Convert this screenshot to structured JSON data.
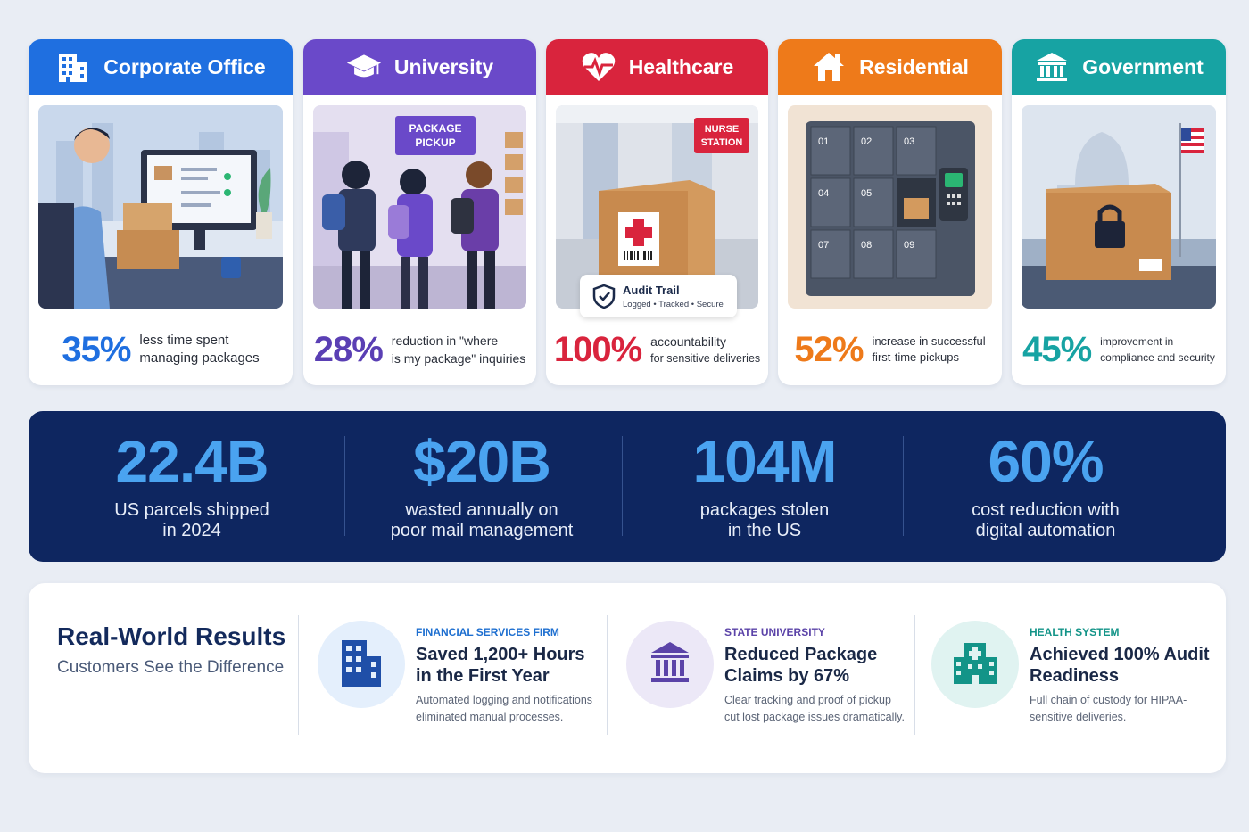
{
  "sectors": [
    {
      "title": "Corporate Office",
      "icon": "office-building-icon",
      "color": "#1f6fe0",
      "pct": "35%",
      "line1": "less time spent",
      "line2": "managing packages"
    },
    {
      "title": "University",
      "icon": "graduation-cap-icon",
      "color": "#6a49c9",
      "pct": "28%",
      "line1": "reduction in \"where",
      "line2": "is my package\" inquiries",
      "sign": "PACKAGE PICKUP"
    },
    {
      "title": "Healthcare",
      "icon": "heart-pulse-icon",
      "color": "#d9243d",
      "pct": "100%",
      "line1": "accountability",
      "line2": "for sensitive deliveries",
      "sign": "NURSE STATION",
      "audit_title": "Audit Trail",
      "audit_sub": "Logged • Tracked • Secure"
    },
    {
      "title": "Residential",
      "icon": "house-icon",
      "color": "#ee7a1a",
      "pct": "52%",
      "line1": "increase in successful",
      "line2": "first-time pickups",
      "lockers": [
        "01",
        "02",
        "03",
        "04",
        "05",
        "07",
        "08",
        "09"
      ]
    },
    {
      "title": "Government",
      "icon": "capitol-building-icon",
      "color": "#17a3a3",
      "pct": "45%",
      "line1": "improvement in",
      "line2": "compliance and security"
    }
  ],
  "stats": [
    {
      "value": "22.4B",
      "line1": "US parcels shipped",
      "line2": "in 2024"
    },
    {
      "value": "$20B",
      "line1": "wasted annually on",
      "line2": "poor mail management"
    },
    {
      "value": "104M",
      "line1": "packages stolen",
      "line2": "in the US"
    },
    {
      "value": "60%",
      "line1": "cost reduction with",
      "line2": "digital automation"
    }
  ],
  "results": {
    "title": "Real-World Results",
    "subtitle": "Customers See the Difference",
    "cases": [
      {
        "tag": "FINANCIAL SERVICES FIRM",
        "headline": "Saved 1,200+ Hours in the First Year",
        "body": "Automated logging and notifications eliminated manual processes.",
        "icon": "office-building-icon",
        "bg": "#e4effc",
        "fg": "#1f4fa8"
      },
      {
        "tag": "STATE UNIVERSITY",
        "headline": "Reduced Package Claims by 67%",
        "body": "Clear tracking and proof of pickup cut lost package issues dramatically.",
        "icon": "university-building-icon",
        "bg": "#ece8f7",
        "fg": "#5b43a8"
      },
      {
        "tag": "HEALTH SYSTEM",
        "headline": "Achieved 100% Audit Readiness",
        "body": "Full chain of custody for HIPAA-sensitive deliveries.",
        "icon": "hospital-icon",
        "bg": "#e0f3f1",
        "fg": "#139488"
      }
    ]
  }
}
